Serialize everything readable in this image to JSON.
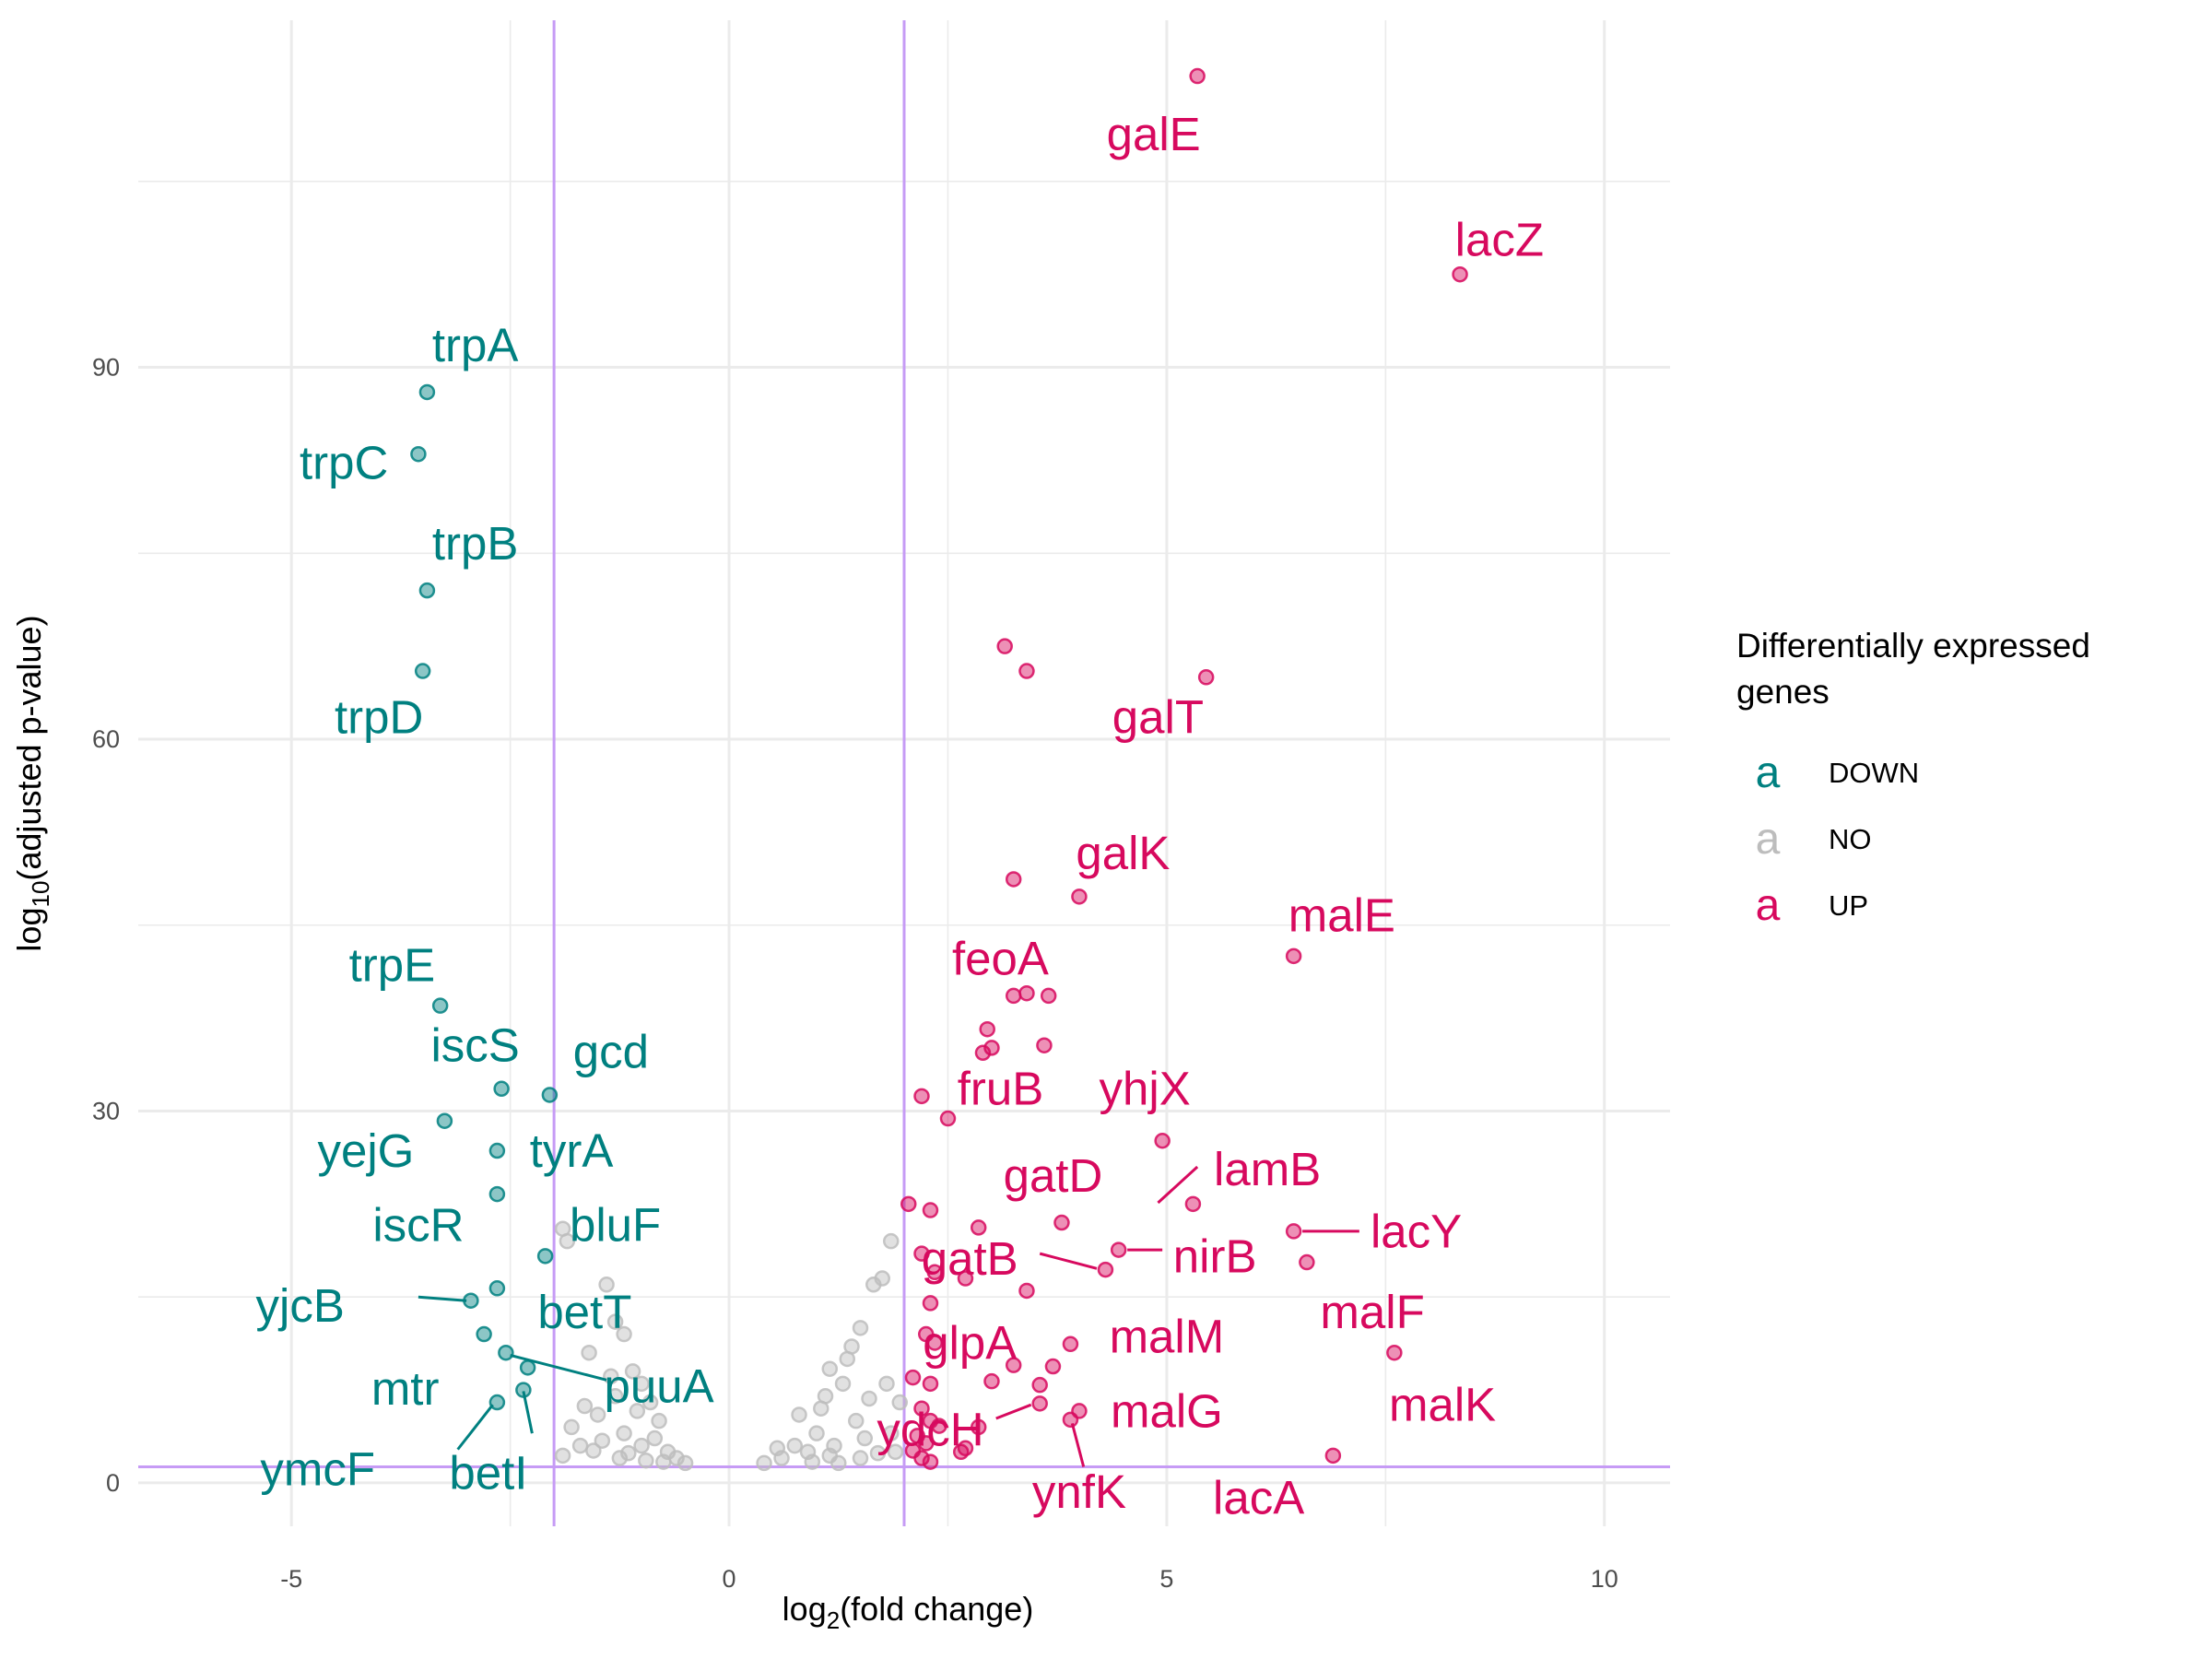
{
  "chart_data": {
    "type": "scatter",
    "xlabel": "log2(fold change)",
    "ylabel": "log10(adjusted p-value)",
    "xlim": [
      -6.75,
      10.75
    ],
    "ylim": [
      -3.5,
      118
    ],
    "x_ticks": [
      -5,
      0,
      5,
      10
    ],
    "x_tick_labels": [
      "-5",
      "0",
      "5",
      "10"
    ],
    "y_ticks": [
      0,
      30,
      60,
      90
    ],
    "y_tick_labels": [
      "0",
      "30",
      "60",
      "90"
    ],
    "grid": true,
    "thresholds": {
      "x": [
        -2,
        2
      ],
      "y": 1.3,
      "color": "#c69bf5"
    },
    "legend": {
      "title_lines": [
        "Differentially expressed",
        "genes"
      ],
      "position": "right",
      "key_glyph": "a",
      "items": [
        {
          "label": "DOWN",
          "color": "#008080"
        },
        {
          "label": "NO",
          "color": "#bdbdbd"
        },
        {
          "label": "UP",
          "color": "#d7095e"
        }
      ]
    },
    "colors": {
      "DOWN": "#008080",
      "NO": "#bdbdbd",
      "UP": "#d7095e"
    },
    "series": [
      {
        "name": "DOWN",
        "points": [
          {
            "x": -3.45,
            "y": 88.0,
            "label": "trpA"
          },
          {
            "x": -3.55,
            "y": 83.0,
            "label": "trpC"
          },
          {
            "x": -3.45,
            "y": 72.0,
            "label": "trpB"
          },
          {
            "x": -3.5,
            "y": 65.5,
            "label": "trpD"
          },
          {
            "x": -3.3,
            "y": 38.5,
            "label": "trpE"
          },
          {
            "x": -2.6,
            "y": 31.8,
            "label": "iscS"
          },
          {
            "x": -2.05,
            "y": 31.3,
            "label": "gcd"
          },
          {
            "x": -3.25,
            "y": 29.2,
            "label": "yejG"
          },
          {
            "x": -2.65,
            "y": 26.8,
            "label": "tyrA"
          },
          {
            "x": -2.65,
            "y": 23.3,
            "label": "iscR"
          },
          {
            "x": -2.1,
            "y": 18.3,
            "label": "bluF"
          },
          {
            "x": -2.95,
            "y": 14.7,
            "label": "yjcB"
          },
          {
            "x": -2.65,
            "y": 15.7,
            "label": "betT"
          },
          {
            "x": -2.8,
            "y": 12.0
          },
          {
            "x": -2.55,
            "y": 10.5,
            "label": "puuA"
          },
          {
            "x": -2.3,
            "y": 9.3,
            "label": "mtr"
          },
          {
            "x": -2.65,
            "y": 6.5,
            "label": "ymcF"
          },
          {
            "x": -2.35,
            "y": 7.5,
            "label": "betI"
          }
        ]
      },
      {
        "name": "NO",
        "points": [
          {
            "x": -1.85,
            "y": 19.5
          },
          {
            "x": -1.9,
            "y": 20.5
          },
          {
            "x": -1.4,
            "y": 16.0
          },
          {
            "x": -1.3,
            "y": 13.0
          },
          {
            "x": -1.2,
            "y": 12.0
          },
          {
            "x": -1.6,
            "y": 10.5
          },
          {
            "x": -1.1,
            "y": 9.0
          },
          {
            "x": -1.0,
            "y": 8.0
          },
          {
            "x": -0.9,
            "y": 6.5
          },
          {
            "x": -0.8,
            "y": 5.0
          },
          {
            "x": -1.3,
            "y": 7.0
          },
          {
            "x": -1.5,
            "y": 5.5
          },
          {
            "x": -1.8,
            "y": 4.5
          },
          {
            "x": -1.7,
            "y": 3.0
          },
          {
            "x": -1.2,
            "y": 4.0
          },
          {
            "x": -1.0,
            "y": 3.0
          },
          {
            "x": -0.7,
            "y": 2.5
          },
          {
            "x": -0.6,
            "y": 2.0
          },
          {
            "x": -0.5,
            "y": 1.6
          },
          {
            "x": -1.9,
            "y": 2.2
          },
          {
            "x": -1.55,
            "y": 2.6
          },
          {
            "x": -1.25,
            "y": 2.0
          },
          {
            "x": -0.95,
            "y": 1.8
          },
          {
            "x": -0.85,
            "y": 3.6
          },
          {
            "x": -1.05,
            "y": 5.8
          },
          {
            "x": -1.35,
            "y": 8.6
          },
          {
            "x": -1.65,
            "y": 6.2
          },
          {
            "x": -1.45,
            "y": 3.4
          },
          {
            "x": -1.15,
            "y": 2.4
          },
          {
            "x": -0.75,
            "y": 1.7
          },
          {
            "x": 0.4,
            "y": 1.6
          },
          {
            "x": 0.6,
            "y": 2.0
          },
          {
            "x": 0.75,
            "y": 3.0
          },
          {
            "x": 0.8,
            "y": 5.5
          },
          {
            "x": 0.9,
            "y": 2.5
          },
          {
            "x": 1.0,
            "y": 4.0
          },
          {
            "x": 1.05,
            "y": 6.0
          },
          {
            "x": 1.1,
            "y": 7.0
          },
          {
            "x": 1.2,
            "y": 3.0
          },
          {
            "x": 1.3,
            "y": 8.0
          },
          {
            "x": 1.35,
            "y": 10.0
          },
          {
            "x": 1.4,
            "y": 11.0
          },
          {
            "x": 1.45,
            "y": 5.0
          },
          {
            "x": 1.5,
            "y": 2.0
          },
          {
            "x": 1.5,
            "y": 12.5
          },
          {
            "x": 1.65,
            "y": 16.0
          },
          {
            "x": 1.75,
            "y": 16.5
          },
          {
            "x": 1.8,
            "y": 8.0
          },
          {
            "x": 1.85,
            "y": 4.0
          },
          {
            "x": 1.85,
            "y": 19.5
          },
          {
            "x": 1.9,
            "y": 2.5
          },
          {
            "x": 1.95,
            "y": 6.5
          },
          {
            "x": 0.55,
            "y": 2.8
          },
          {
            "x": 0.95,
            "y": 1.7
          },
          {
            "x": 1.15,
            "y": 2.2
          },
          {
            "x": 1.25,
            "y": 1.6
          },
          {
            "x": 1.55,
            "y": 3.6
          },
          {
            "x": 1.7,
            "y": 2.4
          },
          {
            "x": 1.6,
            "y": 6.8
          },
          {
            "x": 1.15,
            "y": 9.2
          }
        ]
      },
      {
        "name": "UP",
        "points": [
          {
            "x": 5.35,
            "y": 113.5,
            "label": "galE"
          },
          {
            "x": 8.35,
            "y": 97.5,
            "label": "lacZ"
          },
          {
            "x": 3.15,
            "y": 67.5
          },
          {
            "x": 3.4,
            "y": 65.5
          },
          {
            "x": 5.45,
            "y": 65.0,
            "label": "galT"
          },
          {
            "x": 4.0,
            "y": 47.3,
            "label": "galK"
          },
          {
            "x": 3.25,
            "y": 48.7
          },
          {
            "x": 6.45,
            "y": 42.5,
            "label": "malE"
          },
          {
            "x": 3.25,
            "y": 39.3,
            "label": "feoA"
          },
          {
            "x": 3.4,
            "y": 39.5
          },
          {
            "x": 3.65,
            "y": 39.3
          },
          {
            "x": 2.95,
            "y": 36.6
          },
          {
            "x": 2.9,
            "y": 34.7
          },
          {
            "x": 3.0,
            "y": 35.1
          },
          {
            "x": 3.6,
            "y": 35.3
          },
          {
            "x": 2.2,
            "y": 31.2
          },
          {
            "x": 2.5,
            "y": 29.4,
            "label": "fruB"
          },
          {
            "x": 4.95,
            "y": 27.6,
            "label": "yhjX"
          },
          {
            "x": 5.3,
            "y": 22.5,
            "label": "lamB"
          },
          {
            "x": 3.8,
            "y": 21.0,
            "label": "gatD"
          },
          {
            "x": 2.05,
            "y": 22.5
          },
          {
            "x": 2.3,
            "y": 22.0
          },
          {
            "x": 2.85,
            "y": 20.6
          },
          {
            "x": 6.45,
            "y": 20.3,
            "label": "lacY"
          },
          {
            "x": 4.45,
            "y": 18.8,
            "label": "nirB"
          },
          {
            "x": 4.3,
            "y": 17.2,
            "label": "gatB"
          },
          {
            "x": 6.6,
            "y": 17.8,
            "label": "malF"
          },
          {
            "x": 2.2,
            "y": 18.5
          },
          {
            "x": 2.35,
            "y": 17.0
          },
          {
            "x": 2.7,
            "y": 16.5
          },
          {
            "x": 3.4,
            "y": 15.5
          },
          {
            "x": 2.3,
            "y": 14.5
          },
          {
            "x": 2.25,
            "y": 12.0
          },
          {
            "x": 3.9,
            "y": 11.2,
            "label": "malM"
          },
          {
            "x": 2.35,
            "y": 11.3,
            "label": "glpA"
          },
          {
            "x": 7.6,
            "y": 10.5,
            "label": "malK"
          },
          {
            "x": 3.25,
            "y": 9.5
          },
          {
            "x": 3.7,
            "y": 9.4
          },
          {
            "x": 2.1,
            "y": 8.5
          },
          {
            "x": 2.3,
            "y": 8.0
          },
          {
            "x": 3.0,
            "y": 8.2
          },
          {
            "x": 3.55,
            "y": 7.9
          },
          {
            "x": 3.55,
            "y": 6.4,
            "label": "ydcH"
          },
          {
            "x": 4.0,
            "y": 5.8,
            "label": "malG"
          },
          {
            "x": 3.9,
            "y": 5.1,
            "label": "ynfK"
          },
          {
            "x": 2.2,
            "y": 6.0
          },
          {
            "x": 2.3,
            "y": 5.0
          },
          {
            "x": 2.4,
            "y": 4.6
          },
          {
            "x": 2.85,
            "y": 4.5
          },
          {
            "x": 2.15,
            "y": 3.8
          },
          {
            "x": 2.25,
            "y": 3.2
          },
          {
            "x": 2.7,
            "y": 2.8
          },
          {
            "x": 2.65,
            "y": 2.5
          },
          {
            "x": 2.1,
            "y": 2.6
          },
          {
            "x": 2.2,
            "y": 2.0
          },
          {
            "x": 2.3,
            "y": 1.7
          },
          {
            "x": 6.9,
            "y": 2.2,
            "label": "lacA"
          }
        ]
      }
    ],
    "annotations": [
      {
        "text": "trpA",
        "series": "DOWN",
        "x": -2.9,
        "y": 90.5
      },
      {
        "text": "trpC",
        "series": "DOWN",
        "x": -4.4,
        "y": 81.0
      },
      {
        "text": "trpB",
        "series": "DOWN",
        "x": -2.9,
        "y": 74.5
      },
      {
        "text": "trpD",
        "series": "DOWN",
        "x": -4.0,
        "y": 60.5
      },
      {
        "text": "trpE",
        "series": "DOWN",
        "x": -3.85,
        "y": 40.5
      },
      {
        "text": "iscS",
        "series": "DOWN",
        "x": -2.9,
        "y": 34.0
      },
      {
        "text": "gcd",
        "series": "DOWN",
        "x": -1.35,
        "y": 33.5
      },
      {
        "text": "yejG",
        "series": "DOWN",
        "x": -4.15,
        "y": 25.5
      },
      {
        "text": "tyrA",
        "series": "DOWN",
        "x": -1.8,
        "y": 25.5
      },
      {
        "text": "iscR",
        "series": "DOWN",
        "x": -3.55,
        "y": 19.5
      },
      {
        "text": "bluF",
        "series": "DOWN",
        "x": -1.3,
        "y": 19.5
      },
      {
        "text": "yjcB",
        "series": "DOWN",
        "x": -4.9,
        "y": 13.0,
        "seg": [
          -3.55,
          15.0,
          -3.0,
          14.7
        ]
      },
      {
        "text": "betT",
        "series": "DOWN",
        "x": -1.65,
        "y": 12.5
      },
      {
        "text": "puuA",
        "series": "DOWN",
        "x": -0.8,
        "y": 6.5,
        "seg": [
          -2.5,
          10.3,
          -1.4,
          8.3
        ]
      },
      {
        "text": "mtr",
        "series": "DOWN",
        "x": -3.7,
        "y": 6.3
      },
      {
        "text": "ymcF",
        "series": "DOWN",
        "x": -4.7,
        "y": -0.2,
        "seg": [
          -3.1,
          2.7,
          -2.7,
          6.3
        ]
      },
      {
        "text": "betI",
        "series": "DOWN",
        "x": -2.75,
        "y": -0.5,
        "seg": [
          -2.25,
          4.0,
          -2.35,
          7.4
        ]
      },
      {
        "text": "galE",
        "series": "UP",
        "x": 4.85,
        "y": 107.5
      },
      {
        "text": "lacZ",
        "series": "UP",
        "x": 8.8,
        "y": 99.0
      },
      {
        "text": "galT",
        "series": "UP",
        "x": 4.9,
        "y": 60.5
      },
      {
        "text": "galK",
        "series": "UP",
        "x": 4.5,
        "y": 49.5
      },
      {
        "text": "malE",
        "series": "UP",
        "x": 7.0,
        "y": 44.5
      },
      {
        "text": "feoA",
        "series": "UP",
        "x": 3.1,
        "y": 41.0
      },
      {
        "text": "fruB",
        "series": "UP",
        "x": 3.1,
        "y": 30.5
      },
      {
        "text": "yhjX",
        "series": "UP",
        "x": 4.75,
        "y": 30.5
      },
      {
        "text": "gatD",
        "series": "UP",
        "x": 3.7,
        "y": 23.5
      },
      {
        "text": "lamB",
        "series": "UP",
        "x": 6.15,
        "y": 24.0,
        "seg": [
          5.35,
          25.5,
          4.9,
          22.6
        ]
      },
      {
        "text": "lacY",
        "series": "UP",
        "x": 7.85,
        "y": 19.0,
        "seg": [
          7.2,
          20.3,
          6.55,
          20.3
        ]
      },
      {
        "text": "nirB",
        "series": "UP",
        "x": 5.55,
        "y": 17.0,
        "seg": [
          4.95,
          18.8,
          4.55,
          18.8
        ]
      },
      {
        "text": "gatB",
        "series": "UP",
        "x": 2.75,
        "y": 16.8,
        "seg": [
          3.55,
          18.5,
          4.2,
          17.3
        ]
      },
      {
        "text": "malF",
        "series": "UP",
        "x": 7.35,
        "y": 12.5
      },
      {
        "text": "malM",
        "series": "UP",
        "x": 5.0,
        "y": 10.5
      },
      {
        "text": "glpA",
        "series": "UP",
        "x": 2.75,
        "y": 10.0
      },
      {
        "text": "malK",
        "series": "UP",
        "x": 8.15,
        "y": 5.0
      },
      {
        "text": "ydcH",
        "series": "UP",
        "x": 2.3,
        "y": 3.0,
        "seg": [
          3.05,
          5.2,
          3.45,
          6.3
        ]
      },
      {
        "text": "malG",
        "series": "UP",
        "x": 5.0,
        "y": 4.5
      },
      {
        "text": "ynfK",
        "series": "UP",
        "x": 4.0,
        "y": -2.0,
        "seg": [
          4.05,
          1.3,
          3.92,
          4.8
        ]
      },
      {
        "text": "lacA",
        "series": "UP",
        "x": 6.05,
        "y": -2.5
      }
    ]
  }
}
